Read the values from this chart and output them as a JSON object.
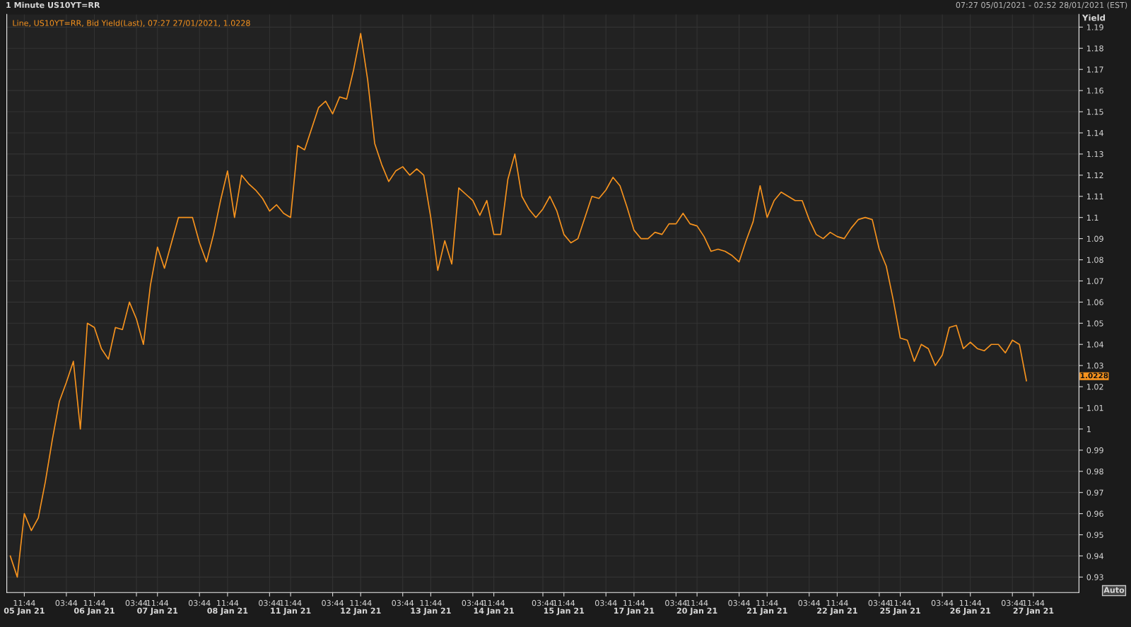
{
  "chart_data": {
    "type": "line",
    "title": "1 Minute US10YT=RR",
    "subtitle": "07:27 05/01/2021 - 02:52 28/01/2021 (EST)",
    "ylabel": "Yield",
    "categories": [
      null,
      null,
      "11:44",
      null,
      null,
      null,
      null,
      null,
      "03:44",
      null,
      null,
      null,
      "11:44",
      null,
      null,
      null,
      null,
      null,
      "03:44",
      null,
      null,
      "11:44",
      null,
      null,
      null,
      null,
      null,
      "03:44",
      null,
      null,
      null,
      "11:44",
      null,
      null,
      null,
      null,
      null,
      "03:44",
      null,
      null,
      "11:44",
      null,
      null,
      null,
      null,
      null,
      "03:44",
      null,
      null,
      null,
      "11:44",
      null,
      null,
      null,
      null,
      null,
      "03:44",
      null,
      null,
      null,
      "11:44",
      null,
      null,
      null,
      null,
      null,
      "03:44",
      null,
      null,
      "11:44",
      null,
      null,
      null,
      null,
      null,
      null,
      "03:44",
      null,
      null,
      "11:44",
      null,
      null,
      null,
      null,
      null,
      "03:44",
      null,
      null,
      null,
      "11:44",
      null,
      null,
      null,
      null,
      null,
      "03:44",
      null,
      null,
      "11:44",
      null,
      null,
      null,
      null,
      null,
      "03:44",
      null,
      null,
      null,
      "11:44",
      null,
      null,
      null,
      null,
      null,
      "03:44",
      null,
      null,
      null,
      "11:44",
      null,
      null,
      null,
      null,
      null,
      "03:44",
      null,
      null,
      "11:44",
      null,
      null,
      null,
      null,
      null,
      "03:44",
      null,
      null,
      null,
      "11:44",
      null,
      null,
      null,
      null,
      null,
      "03:44",
      null,
      null,
      "11:44",
      null,
      null,
      null,
      null,
      null,
      null
    ],
    "series": [
      {
        "name": "Line, US10YT=RR, Bid Yield(Last), 07:27 27/01/2021, 1.0228",
        "color": "#f7931e",
        "values": [
          0.94,
          0.93,
          0.96,
          0.952,
          0.958,
          0.975,
          0.995,
          1.013,
          1.022,
          1.032,
          1.0,
          1.05,
          1.048,
          1.038,
          1.033,
          1.048,
          1.047,
          1.06,
          1.052,
          1.04,
          1.068,
          1.086,
          1.076,
          1.088,
          1.1,
          1.1,
          1.1,
          1.088,
          1.079,
          1.092,
          1.108,
          1.122,
          1.1,
          1.12,
          1.116,
          1.113,
          1.109,
          1.103,
          1.106,
          1.102,
          1.1,
          1.134,
          1.132,
          1.142,
          1.152,
          1.155,
          1.149,
          1.157,
          1.156,
          1.17,
          1.187,
          1.165,
          1.135,
          1.125,
          1.117,
          1.122,
          1.124,
          1.12,
          1.123,
          1.12,
          1.1,
          1.075,
          1.089,
          1.078,
          1.114,
          1.111,
          1.108,
          1.101,
          1.108,
          1.092,
          1.092,
          1.118,
          1.13,
          1.11,
          1.104,
          1.1,
          1.104,
          1.11,
          1.103,
          1.092,
          1.088,
          1.09,
          1.1,
          1.11,
          1.109,
          1.113,
          1.119,
          1.115,
          1.105,
          1.094,
          1.09,
          1.09,
          1.093,
          1.092,
          1.097,
          1.097,
          1.102,
          1.097,
          1.096,
          1.091,
          1.084,
          1.085,
          1.084,
          1.082,
          1.079,
          1.089,
          1.098,
          1.115,
          1.1,
          1.108,
          1.112,
          1.11,
          1.108,
          1.108,
          1.099,
          1.092,
          1.09,
          1.093,
          1.091,
          1.09,
          1.095,
          1.099,
          1.1,
          1.099,
          1.085,
          1.077,
          1.061,
          1.043,
          1.042,
          1.032,
          1.04,
          1.038,
          1.03,
          1.035,
          1.048,
          1.049,
          1.038,
          1.041,
          1.038,
          1.037,
          1.04,
          1.04,
          1.036,
          1.042,
          1.04,
          1.0228,
          null,
          null,
          null,
          null,
          null,
          null,
          null
        ]
      }
    ],
    "ylim": [
      0.9227,
      1.196
    ],
    "yticks": [
      0.93,
      0.94,
      0.95,
      0.96,
      0.97,
      0.98,
      0.99,
      1,
      1.01,
      1.02,
      1.03,
      1.04,
      1.05,
      1.06,
      1.07,
      1.08,
      1.09,
      1.1,
      1.11,
      1.12,
      1.13,
      1.14,
      1.15,
      1.16,
      1.17,
      1.18,
      1.19
    ],
    "annotations": [
      "05 Jan 21",
      "06 Jan 21",
      "07 Jan 21",
      "08 Jan 21",
      "11 Jan 21",
      "12 Jan 21",
      "13 Jan 21",
      "14 Jan 21",
      "15 Jan 21",
      "17 Jan 21",
      "20 Jan 21",
      "21 Jan 21",
      "22 Jan 21",
      "25 Jan 21",
      "26 Jan 21",
      "27 Jan 21",
      "1.0228",
      "Auto"
    ],
    "grid": true,
    "legend": "top left",
    "marker": "none",
    "line_style": "solid"
  }
}
